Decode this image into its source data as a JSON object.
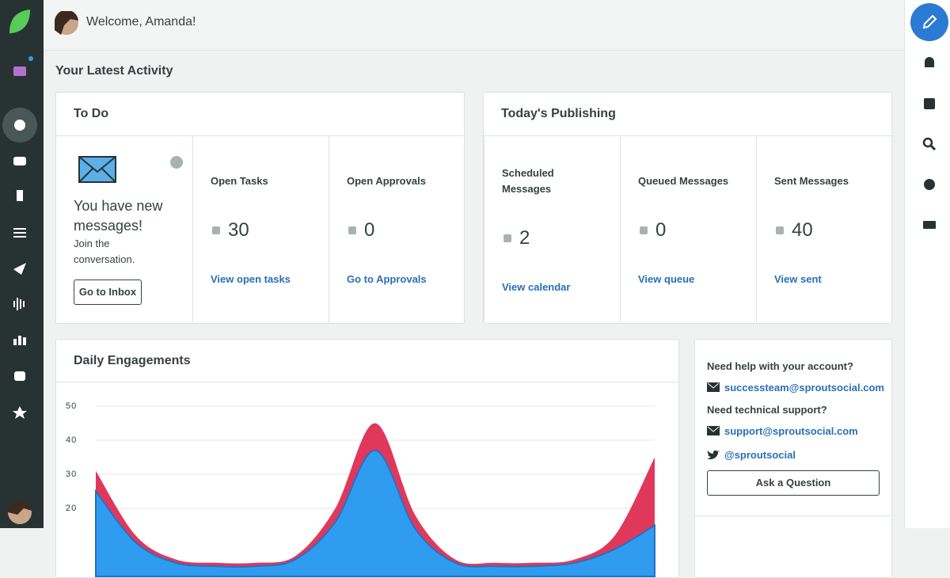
{
  "header": {
    "welcome": "Welcome, Amanda!"
  },
  "section_title": "Your Latest Activity",
  "todo": {
    "title": "To Do",
    "messages": {
      "headline": "You have new messages!",
      "text": "Join the conversation.",
      "button": "Go to Inbox"
    },
    "stats": [
      {
        "label": "Open Tasks",
        "value": 30,
        "link": "View open tasks"
      },
      {
        "label": "Open Approvals",
        "value": 0,
        "link": "Go to Approvals"
      }
    ]
  },
  "publishing": {
    "title": "Today's Publishing",
    "stats": [
      {
        "label": "Scheduled Messages",
        "value": 2,
        "link": "View calendar"
      },
      {
        "label": "Queued Messages",
        "value": 0,
        "link": "View queue"
      },
      {
        "label": "Sent Messages",
        "value": 40,
        "link": "View sent"
      }
    ]
  },
  "help": {
    "account_question": "Need help with your account?",
    "account_email": "successteam@sproutsocial.com",
    "tech_question": "Need technical support?",
    "tech_email": "support@sproutsocial.com",
    "twitter": "@sproutsocial",
    "button": "Ask a Question"
  },
  "chart_data": {
    "type": "area",
    "title": "Daily Engagements",
    "categories": [
      null,
      null,
      null,
      null,
      null,
      null,
      null,
      null,
      null,
      null,
      null,
      null,
      null,
      null,
      null
    ],
    "series": [
      {
        "color": "#e0385b",
        "values": [
          31,
          12,
          5,
          4,
          4,
          6,
          20,
          45,
          18,
          5,
          4,
          4,
          5,
          12,
          35
        ]
      },
      {
        "color": "#2f9cf0",
        "values": [
          25,
          10,
          4,
          3,
          3,
          5,
          16,
          37,
          14,
          4,
          3,
          3,
          4,
          8,
          15
        ]
      }
    ],
    "ylim": [
      0,
      50
    ],
    "yticks": [
      20,
      30,
      40,
      50
    ],
    "grid": true
  }
}
